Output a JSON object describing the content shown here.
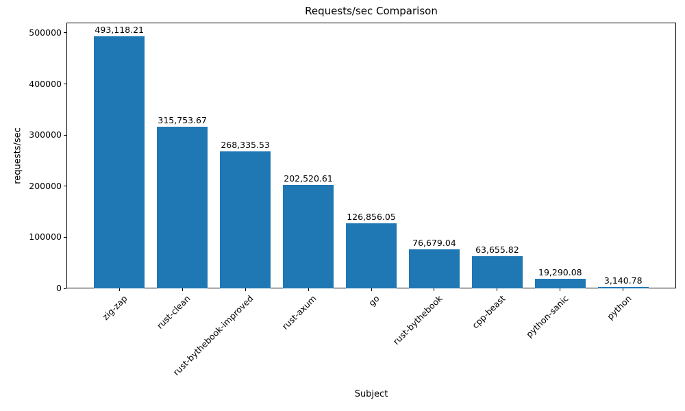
{
  "chart_data": {
    "type": "bar",
    "title": "Requests/sec Comparison",
    "xlabel": "Subject",
    "ylabel": "requests/sec",
    "categories": [
      "zig-zap",
      "rust-clean",
      "rust-bythebook-improved",
      "rust-axum",
      "go",
      "rust-bythebook",
      "cpp-beast",
      "python-sanic",
      "python"
    ],
    "values": [
      493118.21,
      315753.67,
      268335.53,
      202520.61,
      126856.05,
      76679.04,
      63655.82,
      19290.08,
      3140.78
    ],
    "value_labels": [
      "493,118.21",
      "315,753.67",
      "268,335.53",
      "202,520.61",
      "126,856.05",
      "76,679.04",
      "63,655.82",
      "19,290.08",
      "3,140.78"
    ],
    "ylim": [
      0,
      520000
    ],
    "yticks": [
      0,
      100000,
      200000,
      300000,
      400000,
      500000
    ],
    "ytick_labels": [
      "0",
      "100000",
      "200000",
      "300000",
      "400000",
      "500000"
    ],
    "bar_color": "#1f77b4",
    "bar_width_fraction": 0.8,
    "grid": false,
    "legend": null
  }
}
